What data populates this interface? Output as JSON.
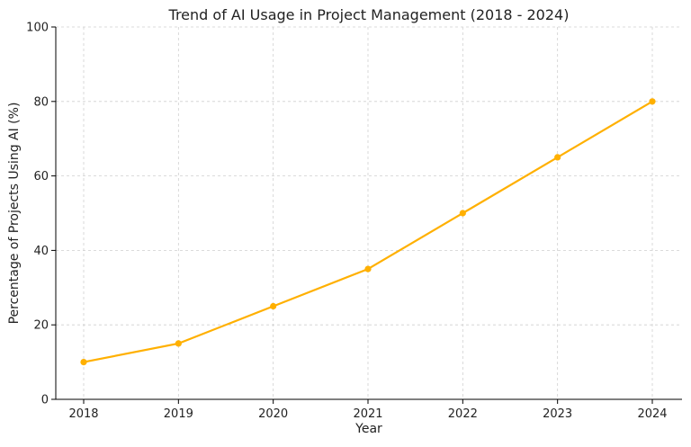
{
  "chart_data": {
    "type": "line",
    "title": "Trend of AI Usage in Project Management (2018 - 2024)",
    "xlabel": "Year",
    "ylabel": "Percentage of Projects Using AI (%)",
    "x": [
      "2018",
      "2019",
      "2020",
      "2021",
      "2022",
      "2023",
      "2024"
    ],
    "series": [
      {
        "values": [
          10,
          15,
          25,
          35,
          50,
          65,
          80
        ],
        "color": "#FFB000"
      }
    ],
    "ylim": [
      0,
      100
    ],
    "yticks": [
      "0",
      "20",
      "40",
      "60",
      "80",
      "100"
    ],
    "grid": true,
    "marker": "circle"
  }
}
